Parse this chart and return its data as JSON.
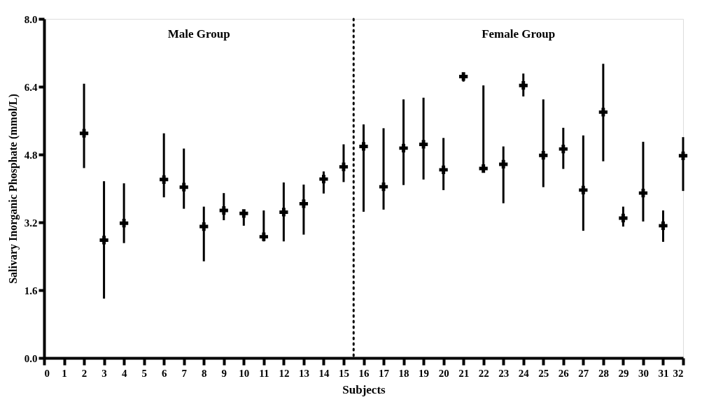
{
  "chart_data": {
    "type": "scatter",
    "xlabel": "Subjects",
    "ylabel": "Salivary Inorganic Phosphate (mmol/L)",
    "x": [
      2,
      3,
      4,
      6,
      7,
      8,
      9,
      10,
      11,
      12,
      13,
      14,
      15,
      16,
      17,
      18,
      19,
      20,
      21,
      22,
      23,
      24,
      25,
      26,
      27,
      28,
      29,
      30,
      31,
      32
    ],
    "values": [
      5.3,
      2.78,
      3.18,
      4.21,
      4.03,
      3.1,
      3.48,
      3.41,
      2.86,
      3.44,
      3.64,
      4.22,
      4.51,
      4.99,
      4.04,
      4.95,
      5.04,
      4.44,
      6.64,
      4.47,
      4.57,
      6.43,
      4.78,
      4.93,
      3.96,
      5.8,
      3.3,
      3.89,
      3.12,
      4.77
    ],
    "errors": [
      [
        4.48,
        6.47
      ],
      [
        1.4,
        4.17
      ],
      [
        2.71,
        4.12
      ],
      [
        3.79,
        5.3
      ],
      [
        3.52,
        4.94
      ],
      [
        2.28,
        3.57
      ],
      [
        3.25,
        3.89
      ],
      [
        3.12,
        3.41
      ],
      [
        2.75,
        3.48
      ],
      [
        2.75,
        4.14
      ],
      [
        2.91,
        4.09
      ],
      [
        3.88,
        4.4
      ],
      [
        4.15,
        5.04
      ],
      [
        3.45,
        5.51
      ],
      [
        3.5,
        5.42
      ],
      [
        4.08,
        6.1
      ],
      [
        4.21,
        6.14
      ],
      [
        3.96,
        5.19
      ],
      [
        6.52,
        6.64
      ],
      [
        4.47,
        6.43
      ],
      [
        3.65,
        4.99
      ],
      [
        6.17,
        6.71
      ],
      [
        4.03,
        6.1
      ],
      [
        4.46,
        5.43
      ],
      [
        3.0,
        5.25
      ],
      [
        4.64,
        6.94
      ],
      [
        3.1,
        3.57
      ],
      [
        3.22,
        5.1
      ],
      [
        2.74,
        3.48
      ],
      [
        3.94,
        5.21
      ]
    ],
    "color": "#000000",
    "xlim": [
      0,
      32
    ],
    "xticks": [
      0,
      1,
      2,
      3,
      4,
      5,
      6,
      7,
      8,
      9,
      10,
      11,
      12,
      13,
      14,
      15,
      16,
      17,
      18,
      19,
      20,
      21,
      22,
      23,
      24,
      25,
      26,
      27,
      28,
      29,
      30,
      31,
      32
    ],
    "ylim": [
      0,
      8
    ],
    "yticks": [
      {
        "value": 0,
        "label": "0.0"
      },
      {
        "value": 1.6,
        "label": "1.6"
      },
      {
        "value": 3.2,
        "label": "3.2"
      },
      {
        "value": 4.8,
        "label": "4.8"
      },
      {
        "value": 6.4,
        "label": "6.4"
      },
      {
        "value": 8,
        "label": "8.0"
      }
    ],
    "ref_lines": [
      {
        "axis": "x",
        "value": 15.5,
        "line_style": "dotted"
      }
    ],
    "annotations": [
      "Male Group",
      "Female Group"
    ],
    "grid": false,
    "marker": "cross"
  }
}
